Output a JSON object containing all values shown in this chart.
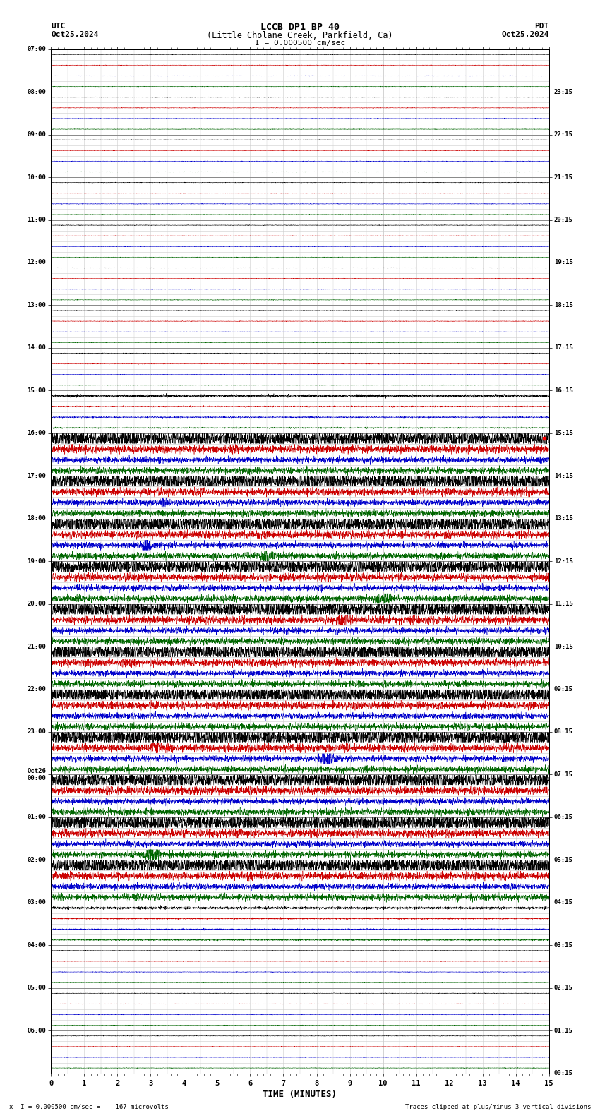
{
  "title_line1": "LCCB DP1 BP 40",
  "title_line2": "(Little Cholane Creek, Parkfield, Ca)",
  "scale_label": "I = 0.000500 cm/sec",
  "utc_label": "UTC",
  "utc_date": "Oct25,2024",
  "pdt_label": "PDT",
  "pdt_date": "Oct25,2024",
  "xlabel": "TIME (MINUTES)",
  "bottom_left": "x  I = 0.000500 cm/sec =    167 microvolts",
  "bottom_right": "Traces clipped at plus/minus 3 vertical divisions",
  "bg_color": "#ffffff",
  "grid_major_color": "#888888",
  "grid_minor_color": "#cccccc",
  "trace_colors": [
    "#000000",
    "#cc0000",
    "#0000cc",
    "#006600"
  ],
  "x_min": 0,
  "x_max": 15,
  "x_ticks": [
    0,
    1,
    2,
    3,
    4,
    5,
    6,
    7,
    8,
    9,
    10,
    11,
    12,
    13,
    14,
    15
  ],
  "num_rows": 24,
  "traces_per_row": 4,
  "left_times": [
    "07:00",
    "08:00",
    "09:00",
    "10:00",
    "11:00",
    "12:00",
    "13:00",
    "14:00",
    "15:00",
    "16:00",
    "17:00",
    "18:00",
    "19:00",
    "20:00",
    "21:00",
    "22:00",
    "23:00",
    "Oct26\n00:00",
    "01:00",
    "02:00",
    "03:00",
    "04:00",
    "05:00",
    "06:00"
  ],
  "right_times": [
    "00:15",
    "01:15",
    "02:15",
    "03:15",
    "04:15",
    "05:15",
    "06:15",
    "07:15",
    "08:15",
    "09:15",
    "10:15",
    "11:15",
    "12:15",
    "13:15",
    "14:15",
    "15:15",
    "16:15",
    "17:15",
    "18:15",
    "19:15",
    "20:15",
    "21:15",
    "22:15",
    "23:15"
  ],
  "active_rows": [
    9,
    10,
    11,
    12,
    13,
    14,
    15,
    16,
    17,
    18,
    19
  ],
  "semi_active_rows": [
    8,
    20
  ],
  "seed": 123
}
